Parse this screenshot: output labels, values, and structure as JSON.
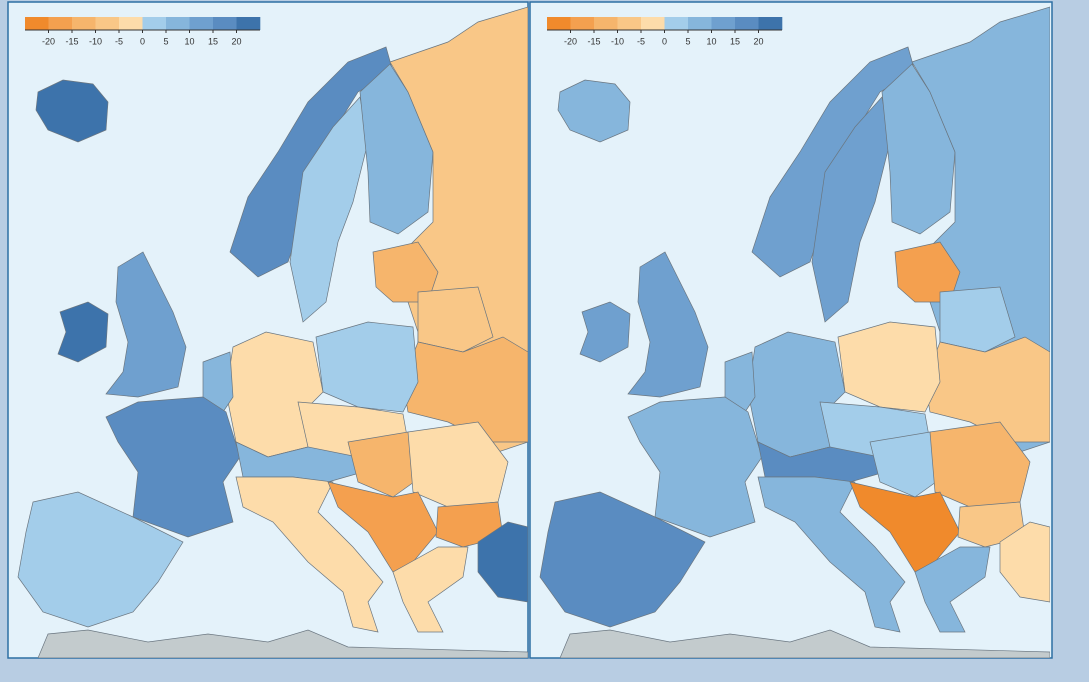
{
  "panels": [
    {
      "legend": {
        "colors": [
          "#f08a2c",
          "#f4a04f",
          "#f6b56c",
          "#f9c787",
          "#fddcaa",
          "#a3cdea",
          "#86b6dc",
          "#6fa0cf",
          "#5a8cc1",
          "#3d73ab"
        ],
        "ticks": [
          -20,
          -15,
          -10,
          -5,
          0,
          5,
          10,
          15,
          20
        ]
      }
    },
    {
      "legend": {
        "colors": [
          "#f08a2c",
          "#f4a04f",
          "#f6b56c",
          "#f9c787",
          "#fddcaa",
          "#a3cdea",
          "#86b6dc",
          "#6fa0cf",
          "#5a8cc1",
          "#3d73ab"
        ],
        "ticks": [
          -20,
          -15,
          -10,
          -5,
          0,
          5,
          10,
          15,
          20
        ]
      }
    }
  ]
}
